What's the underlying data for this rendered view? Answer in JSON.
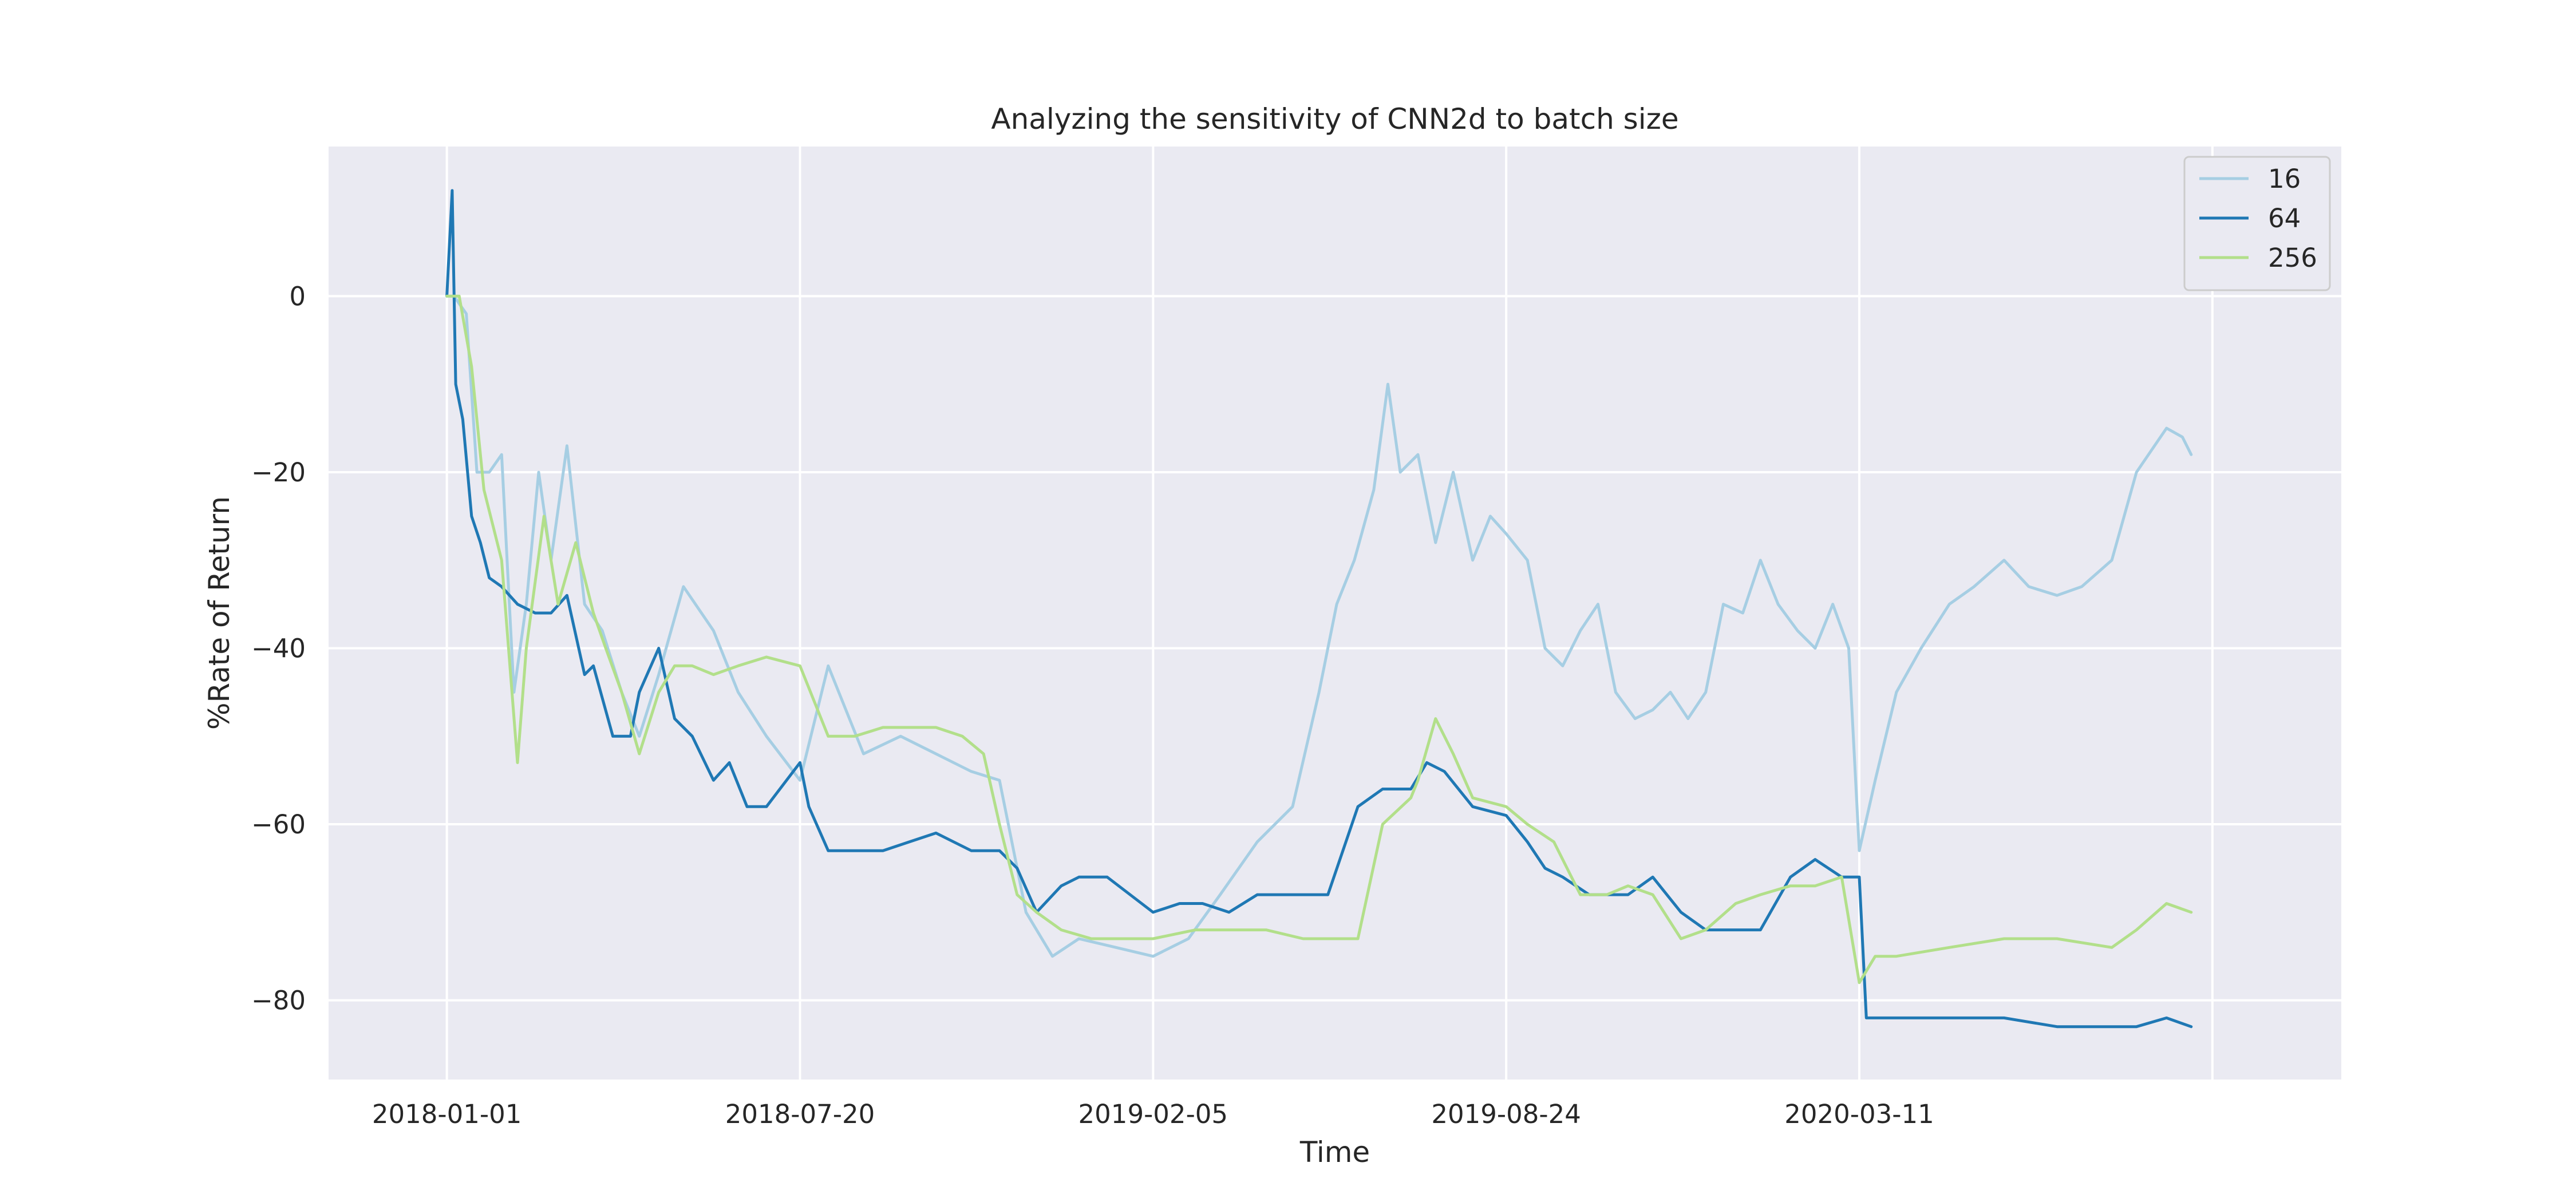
{
  "chart_data": {
    "type": "line",
    "title": "Analyzing the sensitivity of CNN2d to batch size",
    "xlabel": "Time",
    "ylabel": "%Rate of Return",
    "x_axis_type": "date",
    "xlim": [
      "2017-10-26",
      "2020-12-09"
    ],
    "ylim": [
      -89,
      17
    ],
    "x_ticks": [
      "2018-01-01",
      "2018-07-20",
      "2019-02-05",
      "2019-08-24",
      "2020-03-11",
      "2020-09-27"
    ],
    "x_tick_labels": [
      "2018-01-01",
      "2018-07-20",
      "2019-02-05",
      "2019-08-24",
      "2020-03-11",
      ""
    ],
    "y_ticks": [
      0,
      -20,
      -40,
      -60,
      -80
    ],
    "y_tick_labels": [
      "0",
      "−20",
      "−40",
      "−60",
      "−80"
    ],
    "grid": true,
    "legend_position": "top-right",
    "series": [
      {
        "name": "16",
        "color": "#a6cee3",
        "x": [
          "2018-01-01",
          "2018-01-05",
          "2018-01-12",
          "2018-01-18",
          "2018-01-25",
          "2018-02-01",
          "2018-02-08",
          "2018-02-15",
          "2018-02-22",
          "2018-03-01",
          "2018-03-10",
          "2018-03-20",
          "2018-03-30",
          "2018-04-10",
          "2018-04-20",
          "2018-05-01",
          "2018-05-15",
          "2018-06-01",
          "2018-06-15",
          "2018-07-01",
          "2018-07-20",
          "2018-08-05",
          "2018-08-25",
          "2018-09-15",
          "2018-10-05",
          "2018-10-25",
          "2018-11-10",
          "2018-11-25",
          "2018-12-10",
          "2018-12-25",
          "2019-01-15",
          "2019-02-05",
          "2019-02-25",
          "2019-03-15",
          "2019-04-05",
          "2019-04-25",
          "2019-05-10",
          "2019-05-20",
          "2019-05-30",
          "2019-06-10",
          "2019-06-18",
          "2019-06-25",
          "2019-07-05",
          "2019-07-15",
          "2019-07-25",
          "2019-08-05",
          "2019-08-15",
          "2019-08-24",
          "2019-09-05",
          "2019-09-15",
          "2019-09-25",
          "2019-10-05",
          "2019-10-15",
          "2019-10-25",
          "2019-11-05",
          "2019-11-15",
          "2019-11-25",
          "2019-12-05",
          "2019-12-15",
          "2019-12-25",
          "2020-01-05",
          "2020-01-15",
          "2020-01-25",
          "2020-02-05",
          "2020-02-15",
          "2020-02-25",
          "2020-03-05",
          "2020-03-11",
          "2020-03-20",
          "2020-04-01",
          "2020-04-15",
          "2020-05-01",
          "2020-05-15",
          "2020-06-01",
          "2020-06-15",
          "2020-07-01",
          "2020-07-15",
          "2020-08-01",
          "2020-08-15",
          "2020-09-01",
          "2020-09-10",
          "2020-09-15"
        ],
        "y": [
          0,
          0,
          -2,
          -20,
          -20,
          -18,
          -45,
          -35,
          -20,
          -30,
          -17,
          -35,
          -38,
          -45,
          -50,
          -43,
          -33,
          -38,
          -45,
          -50,
          -55,
          -42,
          -52,
          -50,
          -52,
          -54,
          -55,
          -70,
          -75,
          -73,
          -74,
          -75,
          -73,
          -68,
          -62,
          -58,
          -45,
          -35,
          -30,
          -22,
          -10,
          -20,
          -18,
          -28,
          -20,
          -30,
          -25,
          -27,
          -30,
          -40,
          -42,
          -38,
          -35,
          -45,
          -48,
          -47,
          -45,
          -48,
          -45,
          -35,
          -36,
          -30,
          -35,
          -38,
          -40,
          -35,
          -40,
          -63,
          -55,
          -45,
          -40,
          -35,
          -33,
          -30,
          -33,
          -34,
          -33,
          -30,
          -20,
          -15,
          -16,
          -18
        ]
      },
      {
        "name": "64",
        "color": "#1f78b4",
        "x": [
          "2018-01-01",
          "2018-01-04",
          "2018-01-06",
          "2018-01-10",
          "2018-01-15",
          "2018-01-20",
          "2018-01-25",
          "2018-02-01",
          "2018-02-10",
          "2018-02-20",
          "2018-03-01",
          "2018-03-10",
          "2018-03-20",
          "2018-03-25",
          "2018-04-05",
          "2018-04-15",
          "2018-04-20",
          "2018-05-01",
          "2018-05-10",
          "2018-05-20",
          "2018-06-01",
          "2018-06-10",
          "2018-06-20",
          "2018-07-01",
          "2018-07-20",
          "2018-07-25",
          "2018-08-05",
          "2018-08-20",
          "2018-09-05",
          "2018-09-20",
          "2018-10-05",
          "2018-10-25",
          "2018-11-05",
          "2018-11-10",
          "2018-11-20",
          "2018-12-01",
          "2018-12-15",
          "2018-12-25",
          "2019-01-10",
          "2019-02-05",
          "2019-02-20",
          "2019-03-05",
          "2019-03-20",
          "2019-04-05",
          "2019-04-20",
          "2019-05-05",
          "2019-05-15",
          "2019-06-01",
          "2019-06-15",
          "2019-07-01",
          "2019-07-10",
          "2019-07-20",
          "2019-08-05",
          "2019-08-24",
          "2019-09-05",
          "2019-09-15",
          "2019-09-25",
          "2019-10-10",
          "2019-10-25",
          "2019-11-01",
          "2019-11-15",
          "2019-12-01",
          "2019-12-15",
          "2020-01-01",
          "2020-01-15",
          "2020-02-01",
          "2020-02-15",
          "2020-03-01",
          "2020-03-11",
          "2020-03-15",
          "2020-04-01",
          "2020-05-01",
          "2020-06-01",
          "2020-07-01",
          "2020-08-01",
          "2020-08-15",
          "2020-09-01",
          "2020-09-15"
        ],
        "y": [
          0,
          12,
          -10,
          -14,
          -25,
          -28,
          -32,
          -33,
          -35,
          -36,
          -36,
          -34,
          -43,
          -42,
          -50,
          -50,
          -45,
          -40,
          -48,
          -50,
          -55,
          -53,
          -58,
          -58,
          -53,
          -58,
          -63,
          -63,
          -63,
          -62,
          -61,
          -63,
          -63,
          -63,
          -65,
          -70,
          -67,
          -66,
          -66,
          -70,
          -69,
          -69,
          -70,
          -68,
          -68,
          -68,
          -68,
          -58,
          -56,
          -56,
          -53,
          -54,
          -58,
          -59,
          -62,
          -65,
          -66,
          -68,
          -68,
          -68,
          -66,
          -70,
          -72,
          -72,
          -72,
          -66,
          -64,
          -66,
          -66,
          -82,
          -82,
          -82,
          -82,
          -83,
          -83,
          -83,
          -82,
          -83
        ]
      },
      {
        "name": "256",
        "color": "#b2df8a",
        "x": [
          "2018-01-01",
          "2018-01-08",
          "2018-01-15",
          "2018-01-22",
          "2018-02-01",
          "2018-02-10",
          "2018-02-15",
          "2018-02-25",
          "2018-03-05",
          "2018-03-15",
          "2018-03-25",
          "2018-04-01",
          "2018-04-10",
          "2018-04-20",
          "2018-05-01",
          "2018-05-10",
          "2018-05-20",
          "2018-06-01",
          "2018-06-15",
          "2018-07-01",
          "2018-07-20",
          "2018-08-05",
          "2018-08-20",
          "2018-09-05",
          "2018-09-20",
          "2018-10-05",
          "2018-10-20",
          "2018-11-01",
          "2018-11-10",
          "2018-11-20",
          "2018-12-01",
          "2018-12-15",
          "2019-01-01",
          "2019-01-20",
          "2019-02-05",
          "2019-03-01",
          "2019-03-20",
          "2019-04-10",
          "2019-05-01",
          "2019-05-15",
          "2019-06-01",
          "2019-06-15",
          "2019-07-01",
          "2019-07-05",
          "2019-07-15",
          "2019-07-25",
          "2019-08-05",
          "2019-08-24",
          "2019-09-05",
          "2019-09-20",
          "2019-10-05",
          "2019-10-20",
          "2019-11-01",
          "2019-11-15",
          "2019-12-01",
          "2019-12-15",
          "2020-01-01",
          "2020-01-15",
          "2020-02-01",
          "2020-02-15",
          "2020-03-01",
          "2020-03-11",
          "2020-03-20",
          "2020-04-01",
          "2020-05-01",
          "2020-06-01",
          "2020-07-01",
          "2020-08-01",
          "2020-08-15",
          "2020-09-01",
          "2020-09-15"
        ],
        "y": [
          0,
          0,
          -8,
          -22,
          -30,
          -53,
          -40,
          -25,
          -35,
          -28,
          -36,
          -40,
          -45,
          -52,
          -45,
          -42,
          -42,
          -43,
          -42,
          -41,
          -42,
          -50,
          -50,
          -49,
          -49,
          -49,
          -50,
          -52,
          -60,
          -68,
          -70,
          -72,
          -73,
          -73,
          -73,
          -72,
          -72,
          -72,
          -73,
          -73,
          -73,
          -60,
          -57,
          -55,
          -48,
          -52,
          -57,
          -58,
          -60,
          -62,
          -68,
          -68,
          -67,
          -68,
          -73,
          -72,
          -69,
          -68,
          -67,
          -67,
          -66,
          -78,
          -75,
          -75,
          -74,
          -73,
          -73,
          -74,
          -72,
          -69,
          -70
        ]
      }
    ]
  }
}
